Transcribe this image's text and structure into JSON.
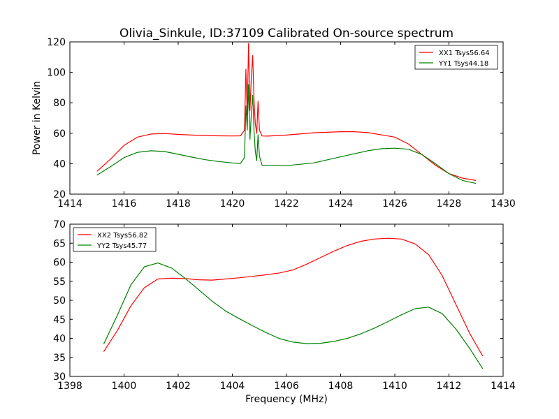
{
  "figure_title": "Olivia_Sinkule, ID:37109 Calibrated On-source spectrum",
  "colors": {
    "red": "#ff0000",
    "green": "#008000"
  },
  "chart_data": [
    {
      "type": "line",
      "title": "Olivia_Sinkule, ID:37109 Calibrated On-source spectrum",
      "xlabel": "",
      "ylabel": "Power in Kelvin",
      "xlim": [
        1414,
        1430
      ],
      "ylim": [
        20,
        120
      ],
      "xticks": [
        1414,
        1416,
        1418,
        1420,
        1422,
        1424,
        1426,
        1428,
        1430
      ],
      "yticks": [
        20,
        40,
        60,
        80,
        100,
        120
      ],
      "legend_position": "top-right",
      "grid": false,
      "series": [
        {
          "name": "XX1 Tsys56.64",
          "color": "#ff0000",
          "x": [
            1415.0,
            1415.5,
            1416.0,
            1416.5,
            1417.0,
            1417.5,
            1418.0,
            1418.5,
            1419.0,
            1419.5,
            1420.0,
            1420.3,
            1420.45,
            1420.5,
            1420.55,
            1420.6,
            1420.65,
            1420.7,
            1420.75,
            1420.8,
            1420.85,
            1420.9,
            1420.95,
            1421.0,
            1421.1,
            1421.3,
            1422.0,
            1423.0,
            1424.0,
            1424.5,
            1425.0,
            1426.0,
            1426.5,
            1427.0,
            1427.5,
            1428.0,
            1428.5,
            1429.0
          ],
          "y": [
            35,
            43,
            52,
            57.5,
            59.5,
            59.8,
            59.2,
            58.8,
            58.5,
            58.3,
            58.2,
            58.3,
            62,
            102,
            72,
            119,
            75,
            96,
            111,
            82,
            66,
            60,
            81,
            62,
            58.2,
            58.1,
            58.8,
            60.3,
            61,
            61,
            60.4,
            57.5,
            53,
            46,
            39,
            33.5,
            30.5,
            29
          ]
        },
        {
          "name": "YY1 Tsys44.18",
          "color": "#008000",
          "x": [
            1415.0,
            1415.5,
            1416.0,
            1416.5,
            1417.0,
            1417.5,
            1418.0,
            1418.5,
            1419.0,
            1419.5,
            1420.0,
            1420.3,
            1420.45,
            1420.5,
            1420.55,
            1420.6,
            1420.65,
            1420.7,
            1420.75,
            1420.8,
            1420.85,
            1420.9,
            1420.95,
            1421.0,
            1421.1,
            1421.3,
            1422.0,
            1423.0,
            1424.0,
            1425.0,
            1425.5,
            1426.0,
            1426.5,
            1427.0,
            1427.5,
            1428.0,
            1428.5,
            1429.0
          ],
          "y": [
            32.5,
            38,
            44,
            47.5,
            48.5,
            48,
            46.2,
            44.3,
            42.6,
            41.4,
            40.5,
            40.2,
            44,
            78,
            62,
            92,
            56,
            72,
            85,
            62,
            48,
            42,
            59,
            45,
            39,
            38.8,
            38.7,
            40.5,
            44.5,
            48.5,
            49.8,
            50.2,
            49.5,
            46,
            40,
            33.5,
            29,
            27
          ]
        }
      ]
    },
    {
      "type": "line",
      "title": "",
      "xlabel": "Frequency (MHz)",
      "ylabel": "",
      "xlim": [
        1398,
        1414
      ],
      "ylim": [
        30,
        70
      ],
      "xticks": [
        1398,
        1400,
        1402,
        1404,
        1406,
        1408,
        1410,
        1412,
        1414
      ],
      "yticks": [
        30,
        35,
        40,
        45,
        50,
        55,
        60,
        65,
        70
      ],
      "legend_position": "top-left",
      "grid": false,
      "series": [
        {
          "name": "XX2 Tsys56.82",
          "color": "#ff0000",
          "x": [
            1399.25,
            1399.75,
            1400.25,
            1400.75,
            1401.25,
            1401.75,
            1402.25,
            1402.75,
            1403.25,
            1403.75,
            1404.25,
            1404.75,
            1405.25,
            1405.75,
            1406.25,
            1406.75,
            1407.25,
            1407.75,
            1408.25,
            1408.75,
            1409.25,
            1409.75,
            1410.25,
            1410.75,
            1411.25,
            1411.75,
            1412.25,
            1412.75,
            1413.25
          ],
          "y": [
            36.5,
            42,
            48.5,
            53.3,
            55.6,
            55.8,
            55.7,
            55.4,
            55.3,
            55.6,
            55.9,
            56.3,
            56.7,
            57.2,
            58,
            59.5,
            61.2,
            62.9,
            64.4,
            65.5,
            66.1,
            66.3,
            66.1,
            64.8,
            62,
            56.5,
            49,
            41.5,
            35.3
          ]
        },
        {
          "name": "YY2 Tsys45.77",
          "color": "#008000",
          "x": [
            1399.25,
            1399.75,
            1400.25,
            1400.75,
            1401.25,
            1401.75,
            1402.25,
            1402.75,
            1403.25,
            1403.75,
            1404.25,
            1404.75,
            1405.25,
            1405.75,
            1406.25,
            1406.75,
            1407.25,
            1407.75,
            1408.25,
            1408.75,
            1409.25,
            1409.75,
            1410.25,
            1410.75,
            1411.25,
            1411.75,
            1412.25,
            1412.75,
            1413.25
          ],
          "y": [
            38.5,
            46,
            54,
            58.8,
            59.8,
            58.5,
            55.8,
            52.8,
            49.8,
            47.2,
            45.2,
            43.3,
            41.5,
            39.9,
            39,
            38.6,
            38.7,
            39.2,
            40,
            41.2,
            42.7,
            44.4,
            46.2,
            47.8,
            48.2,
            46.5,
            42.5,
            37.5,
            32
          ]
        }
      ]
    }
  ]
}
